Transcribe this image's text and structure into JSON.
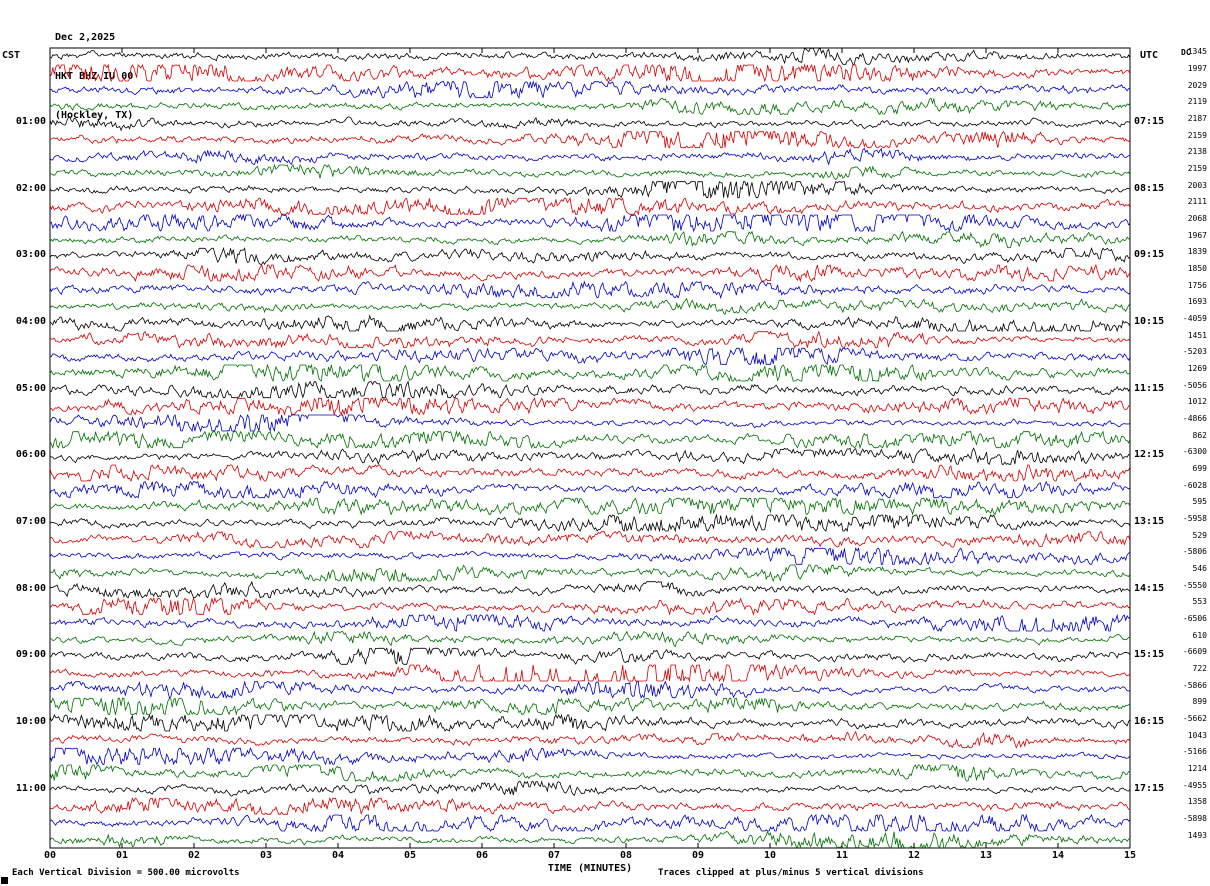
{
  "header": {
    "date": "Dec 2,2025",
    "station": "HKT BHZ IU 00",
    "location": "(Hockley, TX)",
    "left_tz": "CST",
    "right_tz": "UTC",
    "dc_label": "DC"
  },
  "axis": {
    "x_ticks": [
      "00",
      "01",
      "02",
      "03",
      "04",
      "05",
      "06",
      "07",
      "08",
      "09",
      "10",
      "11",
      "12",
      "13",
      "14",
      "15"
    ]
  },
  "footer": {
    "xlabel": "TIME (MINUTES)",
    "scale_note": "Each Vertical Division =  500.00 microvolts",
    "clip_note": "Traces clipped at plus/minus 5 vertical divisions"
  },
  "colors": {
    "black": "#000000",
    "red": "#d40000",
    "blue": "#0000c8",
    "green": "#007000"
  },
  "chart_data": {
    "type": "line",
    "title": "Helicorder seismogram HKT BHZ IU 00 (Hockley, TX) Dec 2,2025",
    "x_axis": {
      "label": "TIME (MINUTES)",
      "range": [
        0,
        15
      ],
      "tick_interval": 1
    },
    "row_duration_minutes": 15,
    "vertical_division_microvolts": 500.0,
    "clip_divisions": 5,
    "rows": [
      {
        "cst": "",
        "utc": "",
        "value": "1345",
        "color": "black"
      },
      {
        "cst": "",
        "utc": "",
        "value": "1997",
        "color": "red"
      },
      {
        "cst": "",
        "utc": "",
        "value": "2029",
        "color": "blue"
      },
      {
        "cst": "",
        "utc": "",
        "value": "2119",
        "color": "green"
      },
      {
        "cst": "01:00",
        "utc": "07:15",
        "value": "2187",
        "color": "black"
      },
      {
        "cst": "",
        "utc": "",
        "value": "2159",
        "color": "red"
      },
      {
        "cst": "",
        "utc": "",
        "value": "2138",
        "color": "blue"
      },
      {
        "cst": "",
        "utc": "",
        "value": "2159",
        "color": "green"
      },
      {
        "cst": "02:00",
        "utc": "08:15",
        "value": "2003",
        "color": "black"
      },
      {
        "cst": "",
        "utc": "",
        "value": "2111",
        "color": "red"
      },
      {
        "cst": "",
        "utc": "",
        "value": "2068",
        "color": "blue"
      },
      {
        "cst": "",
        "utc": "",
        "value": "1967",
        "color": "green"
      },
      {
        "cst": "03:00",
        "utc": "09:15",
        "value": "1839",
        "color": "black"
      },
      {
        "cst": "",
        "utc": "",
        "value": "1850",
        "color": "red"
      },
      {
        "cst": "",
        "utc": "",
        "value": "1756",
        "color": "blue"
      },
      {
        "cst": "",
        "utc": "",
        "value": "1693",
        "color": "green"
      },
      {
        "cst": "04:00",
        "utc": "10:15",
        "value": "-4059",
        "color": "black"
      },
      {
        "cst": "",
        "utc": "",
        "value": "1451",
        "color": "red"
      },
      {
        "cst": "",
        "utc": "",
        "value": "-5203",
        "color": "blue"
      },
      {
        "cst": "",
        "utc": "",
        "value": "1269",
        "color": "green"
      },
      {
        "cst": "05:00",
        "utc": "11:15",
        "value": "-5056",
        "color": "black"
      },
      {
        "cst": "",
        "utc": "",
        "value": "1012",
        "color": "red"
      },
      {
        "cst": "",
        "utc": "",
        "value": "-4866",
        "color": "blue"
      },
      {
        "cst": "",
        "utc": "",
        "value": "862",
        "color": "green"
      },
      {
        "cst": "06:00",
        "utc": "12:15",
        "value": "-6300",
        "color": "black"
      },
      {
        "cst": "",
        "utc": "",
        "value": "699",
        "color": "red"
      },
      {
        "cst": "",
        "utc": "",
        "value": "-6028",
        "color": "blue"
      },
      {
        "cst": "",
        "utc": "",
        "value": "595",
        "color": "green"
      },
      {
        "cst": "07:00",
        "utc": "13:15",
        "value": "-5958",
        "color": "black"
      },
      {
        "cst": "",
        "utc": "",
        "value": "529",
        "color": "red"
      },
      {
        "cst": "",
        "utc": "",
        "value": "-5806",
        "color": "blue"
      },
      {
        "cst": "",
        "utc": "",
        "value": "546",
        "color": "green"
      },
      {
        "cst": "08:00",
        "utc": "14:15",
        "value": "-5550",
        "color": "black"
      },
      {
        "cst": "",
        "utc": "",
        "value": "553",
        "color": "red"
      },
      {
        "cst": "",
        "utc": "",
        "value": "-6506",
        "color": "blue"
      },
      {
        "cst": "",
        "utc": "",
        "value": "610",
        "color": "green"
      },
      {
        "cst": "09:00",
        "utc": "15:15",
        "value": "-6609",
        "color": "black"
      },
      {
        "cst": "",
        "utc": "",
        "value": "722",
        "color": "red"
      },
      {
        "cst": "",
        "utc": "",
        "value": "-5866",
        "color": "blue"
      },
      {
        "cst": "",
        "utc": "",
        "value": "899",
        "color": "green"
      },
      {
        "cst": "10:00",
        "utc": "16:15",
        "value": "-5662",
        "color": "black"
      },
      {
        "cst": "",
        "utc": "",
        "value": "1043",
        "color": "red"
      },
      {
        "cst": "",
        "utc": "",
        "value": "-5166",
        "color": "blue"
      },
      {
        "cst": "",
        "utc": "",
        "value": "1214",
        "color": "green"
      },
      {
        "cst": "11:00",
        "utc": "17:15",
        "value": "-4955",
        "color": "black"
      },
      {
        "cst": "",
        "utc": "",
        "value": "1358",
        "color": "red"
      },
      {
        "cst": "",
        "utc": "",
        "value": "-5898",
        "color": "blue"
      },
      {
        "cst": "",
        "utc": "",
        "value": "1493",
        "color": "green"
      }
    ]
  }
}
